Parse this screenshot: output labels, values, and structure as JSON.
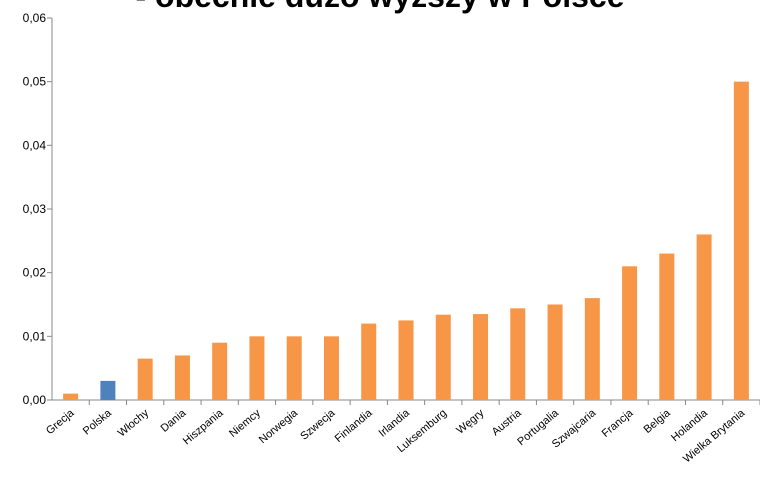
{
  "chart_data": {
    "type": "bar",
    "title": "- obecnie dużo wyższy w Polsce",
    "categories": [
      "Grecja",
      "Polska",
      "Włochy",
      "Dania",
      "Hiszpania",
      "Niemcy",
      "Norwegia",
      "Szwecja",
      "Finlandia",
      "Irlandia",
      "Luksemburg",
      "Węgry",
      "Austria",
      "Portugalia",
      "Szwajcaria",
      "Francja",
      "Belgia",
      "Holandia",
      "Wielka Brytania"
    ],
    "values": [
      0.001,
      0.003,
      0.0065,
      0.007,
      0.009,
      0.01,
      0.01,
      0.01,
      0.012,
      0.0125,
      0.0134,
      0.0135,
      0.0144,
      0.015,
      0.016,
      0.021,
      0.023,
      0.026,
      0.05
    ],
    "highlight_category": "Polska",
    "ylim": [
      0,
      0.06
    ],
    "yticks": [
      "0,00",
      "0,01",
      "0,02",
      "0,03",
      "0,04",
      "0,05",
      "0,06"
    ],
    "grid": false,
    "legend": "none",
    "colors": {
      "default": "#F79646",
      "highlight": "#4F81BD",
      "axis": "#888888",
      "text": "#000000"
    }
  }
}
